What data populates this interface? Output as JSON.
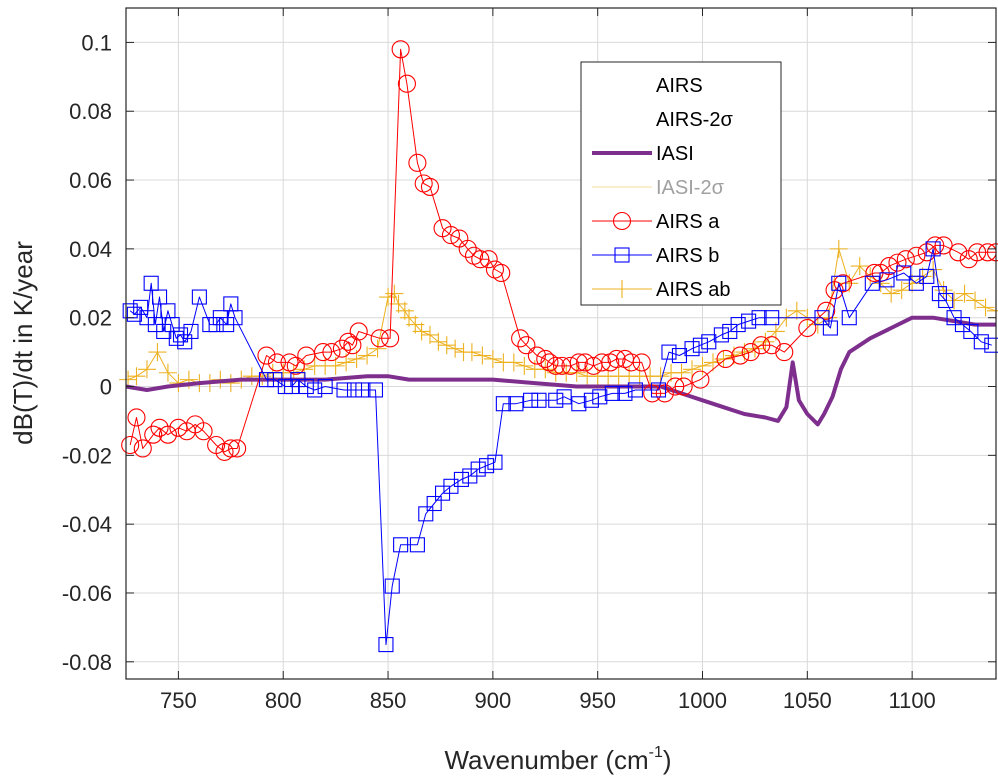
{
  "chart_data": {
    "type": "line",
    "xlabel": "Wavenumber (cm",
    "xlabel_sup": "-1",
    "xlabel_close": ")",
    "ylabel": "dB(T)/dt in K/year",
    "xlim": [
      725,
      1140
    ],
    "ylim": [
      -0.085,
      0.11
    ],
    "xticks": [
      750,
      800,
      850,
      900,
      950,
      1000,
      1050,
      1100
    ],
    "yticks": [
      -0.08,
      -0.06,
      -0.04,
      -0.02,
      0,
      0.02,
      0.04,
      0.06,
      0.08,
      0.1
    ],
    "ytick_labels": [
      "-0.08",
      "-0.06",
      "-0.04",
      "-0.02",
      "0",
      "0.02",
      "0.04",
      "0.06",
      "0.08",
      "0.1"
    ],
    "grid": true,
    "legend_position": "top-right",
    "legend": [
      {
        "label": "AIRS",
        "style": "none"
      },
      {
        "label": "AIRS-2σ",
        "style": "none"
      },
      {
        "label": "IASI",
        "style": "thick-line",
        "color": "#7e2f8e"
      },
      {
        "label": "IASI-2σ",
        "style": "faint-line",
        "color": "#edb120"
      },
      {
        "label": "AIRS a",
        "style": "circle",
        "color": "#ff0000"
      },
      {
        "label": "AIRS b",
        "style": "square",
        "color": "#0000ff"
      },
      {
        "label": "AIRS ab",
        "style": "plus",
        "color": "#edb120"
      }
    ],
    "series": [
      {
        "name": "IASI",
        "color": "#7e2f8e",
        "marker": "none",
        "x": [
          725,
          735,
          745,
          760,
          780,
          800,
          820,
          840,
          850,
          860,
          880,
          900,
          920,
          940,
          960,
          980,
          990,
          1000,
          1010,
          1020,
          1030,
          1036,
          1040,
          1043,
          1046,
          1050,
          1055,
          1058,
          1062,
          1066,
          1070,
          1080,
          1090,
          1100,
          1110,
          1120,
          1130,
          1140
        ],
        "y": [
          0.0,
          -0.001,
          0.0,
          0.001,
          0.002,
          0.002,
          0.002,
          0.003,
          0.003,
          0.002,
          0.002,
          0.002,
          0.001,
          0.0,
          0.0,
          0.0,
          -0.002,
          -0.004,
          -0.006,
          -0.008,
          -0.009,
          -0.01,
          -0.006,
          0.007,
          -0.004,
          -0.008,
          -0.011,
          -0.008,
          -0.003,
          0.005,
          0.01,
          0.014,
          0.017,
          0.02,
          0.02,
          0.019,
          0.018,
          0.018
        ]
      },
      {
        "name": "AIRS a",
        "color": "#ff0000",
        "marker": "circle",
        "x": [
          727,
          730,
          733,
          738,
          741,
          745,
          750,
          754,
          758,
          762,
          768,
          772,
          775,
          778,
          792,
          797,
          803,
          806,
          811,
          819,
          823,
          828,
          831,
          833,
          836,
          846,
          851,
          856,
          859,
          864,
          867,
          870,
          876,
          880,
          884,
          888,
          891,
          894,
          898,
          901,
          904,
          913,
          916,
          921,
          925,
          927,
          930,
          933,
          937,
          941,
          944,
          948,
          952,
          956,
          959,
          963,
          966,
          971,
          976,
          982,
          987,
          991,
          999,
          1011,
          1018,
          1023,
          1028,
          1033,
          1039,
          1050,
          1059,
          1063,
          1067,
          1082,
          1085,
          1089,
          1093,
          1097,
          1102,
          1107,
          1111,
          1115,
          1122,
          1127,
          1131,
          1136,
          1140
        ],
        "y": [
          -0.017,
          -0.009,
          -0.018,
          -0.014,
          -0.012,
          -0.014,
          -0.012,
          -0.013,
          -0.011,
          -0.013,
          -0.017,
          -0.019,
          -0.018,
          -0.018,
          0.009,
          0.007,
          0.007,
          0.006,
          0.009,
          0.01,
          0.01,
          0.011,
          0.013,
          0.012,
          0.016,
          0.014,
          0.014,
          0.098,
          0.088,
          0.065,
          0.059,
          0.058,
          0.046,
          0.044,
          0.043,
          0.04,
          0.038,
          0.037,
          0.037,
          0.034,
          0.033,
          0.014,
          0.012,
          0.009,
          0.008,
          0.007,
          0.006,
          0.006,
          0.006,
          0.007,
          0.007,
          0.006,
          0.007,
          0.007,
          0.008,
          0.008,
          0.007,
          0.007,
          -0.002,
          -0.002,
          0.0,
          0.0,
          0.002,
          0.008,
          0.009,
          0.01,
          0.012,
          0.012,
          0.01,
          0.017,
          0.022,
          0.028,
          0.03,
          0.033,
          0.033,
          0.035,
          0.036,
          0.037,
          0.038,
          0.039,
          0.041,
          0.041,
          0.039,
          0.037,
          0.039,
          0.039,
          0.039
        ]
      },
      {
        "name": "AIRS b",
        "color": "#0000ff",
        "marker": "square",
        "x": [
          727,
          729,
          732,
          735,
          737,
          739,
          741,
          743,
          745,
          747,
          749,
          751,
          753,
          756,
          760,
          765,
          768,
          770,
          773,
          775,
          777,
          792,
          796,
          801,
          804,
          807,
          811,
          815,
          820,
          829,
          834,
          838,
          844,
          849,
          852,
          856,
          864,
          868,
          872,
          876,
          880,
          885,
          889,
          893,
          897,
          901,
          905,
          911,
          918,
          922,
          930,
          934,
          941,
          947,
          951,
          957,
          963,
          968,
          979,
          984,
          989,
          995,
          999,
          1003,
          1009,
          1013,
          1017,
          1022,
          1027,
          1033,
          1057,
          1061,
          1065,
          1070,
          1081,
          1088,
          1096,
          1102,
          1107,
          1110,
          1113,
          1116,
          1120,
          1124,
          1128,
          1133,
          1138
        ],
        "y": [
          0.022,
          0.021,
          0.023,
          0.02,
          0.03,
          0.018,
          0.026,
          0.016,
          0.022,
          0.018,
          0.014,
          0.015,
          0.013,
          0.016,
          0.026,
          0.018,
          0.018,
          0.02,
          0.018,
          0.024,
          0.02,
          0.002,
          0.002,
          0.0,
          0.0,
          0.002,
          0.0,
          -0.001,
          0.0,
          -0.001,
          -0.001,
          -0.001,
          -0.001,
          -0.075,
          -0.058,
          -0.046,
          -0.046,
          -0.037,
          -0.034,
          -0.031,
          -0.029,
          -0.027,
          -0.026,
          -0.024,
          -0.023,
          -0.022,
          -0.005,
          -0.005,
          -0.004,
          -0.004,
          -0.004,
          -0.003,
          -0.005,
          -0.004,
          -0.003,
          -0.002,
          -0.002,
          -0.001,
          -0.001,
          0.01,
          0.009,
          0.011,
          0.012,
          0.013,
          0.015,
          0.016,
          0.018,
          0.019,
          0.02,
          0.02,
          0.02,
          0.017,
          0.03,
          0.02,
          0.03,
          0.031,
          0.033,
          0.03,
          0.032,
          0.04,
          0.027,
          0.025,
          0.02,
          0.018,
          0.016,
          0.013,
          0.012
        ]
      },
      {
        "name": "AIRS ab",
        "color": "#edb120",
        "marker": "plus",
        "x": [
          726,
          730,
          735,
          740,
          745,
          750,
          755,
          760,
          765,
          770,
          775,
          780,
          785,
          790,
          795,
          800,
          805,
          810,
          815,
          820,
          825,
          830,
          835,
          840,
          845,
          850,
          853,
          855,
          858,
          860,
          863,
          866,
          870,
          874,
          878,
          882,
          886,
          890,
          895,
          900,
          905,
          910,
          915,
          920,
          925,
          930,
          935,
          940,
          945,
          950,
          955,
          960,
          965,
          970,
          975,
          980,
          985,
          990,
          995,
          1000,
          1005,
          1010,
          1015,
          1020,
          1025,
          1030,
          1035,
          1040,
          1045,
          1050,
          1055,
          1060,
          1065,
          1070,
          1075,
          1080,
          1085,
          1090,
          1095,
          1100,
          1105,
          1110,
          1115,
          1120,
          1125,
          1130,
          1135,
          1140
        ],
        "y": [
          0.002,
          0.003,
          0.005,
          0.01,
          0.004,
          0.001,
          0.002,
          0.001,
          0.001,
          0.002,
          0.001,
          0.002,
          0.003,
          0.003,
          0.004,
          0.004,
          0.004,
          0.005,
          0.006,
          0.006,
          0.006,
          0.007,
          0.008,
          0.009,
          0.011,
          0.026,
          0.027,
          0.024,
          0.022,
          0.02,
          0.018,
          0.016,
          0.015,
          0.013,
          0.012,
          0.011,
          0.01,
          0.01,
          0.009,
          0.008,
          0.007,
          0.007,
          0.006,
          0.005,
          0.005,
          0.004,
          0.004,
          0.004,
          0.003,
          0.003,
          0.003,
          0.003,
          0.003,
          0.003,
          0.003,
          0.003,
          0.004,
          0.004,
          0.005,
          0.006,
          0.007,
          0.008,
          0.009,
          0.01,
          0.011,
          0.013,
          0.016,
          0.02,
          0.022,
          0.02,
          0.018,
          0.02,
          0.04,
          0.03,
          0.035,
          0.032,
          0.03,
          0.027,
          0.028,
          0.03,
          0.032,
          0.034,
          0.028,
          0.025,
          0.027,
          0.025,
          0.023,
          0.022
        ]
      }
    ]
  }
}
